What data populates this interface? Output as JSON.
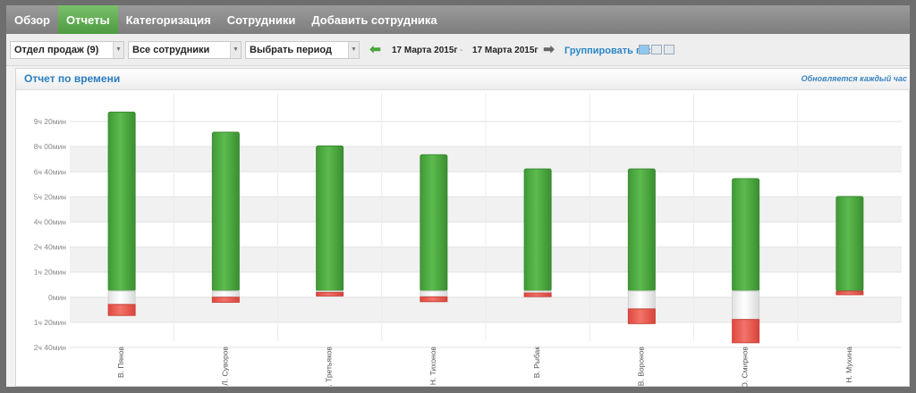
{
  "nav": {
    "items": [
      {
        "label": "Обзор",
        "name": "nav-overview"
      },
      {
        "label": "Отчеты",
        "name": "nav-reports",
        "active": true
      },
      {
        "label": "Категоризация",
        "name": "nav-categorization"
      },
      {
        "label": "Сотрудники",
        "name": "nav-employees"
      },
      {
        "label": "Добавить сотрудника",
        "name": "nav-add-employee"
      }
    ]
  },
  "filters": {
    "department": "Отдел продаж (9)",
    "employees": "Все сотрудники",
    "period": "Выбрать период",
    "date_from": "17 Марта 2015г",
    "date_separator": "-",
    "date_to": "17 Марта 2015г",
    "group_by_label": "Группировать по:"
  },
  "colors": {
    "positive": "#4ca43f",
    "negative": "#e85a50",
    "accent": "#2a7dbf",
    "nav_active": "#5aa84b"
  },
  "panel": {
    "title": "Отчет по времени",
    "update_note": "Обновляется каждый час"
  },
  "chart_data": {
    "type": "bar",
    "y_axis_ticks": [
      "9ч 20мин",
      "8ч 00мин",
      "6ч 40мин",
      "5ч 20мин",
      "4ч 00мин",
      "2ч 40мин",
      "1ч 20мин",
      "0мин",
      "1ч 20мин",
      "2ч 40мин"
    ],
    "ylim_minutes": [
      -160,
      560
    ],
    "categories": [
      "В. Пянов",
      "Л. Суворов",
      "Е. Третьяков",
      "Н. Тихонов",
      "В. Рыбак",
      "В. Воронов",
      "О. Смирнов",
      "Н. Мухина"
    ],
    "series": [
      {
        "values_minutes": [
          570,
          506,
          462,
          434,
          389,
          389,
          358,
          301
        ]
      },
      {
        "values_minutes": [
          -78,
          -36,
          -16,
          -34,
          -18,
          -104,
          -165,
          -12
        ]
      }
    ]
  }
}
